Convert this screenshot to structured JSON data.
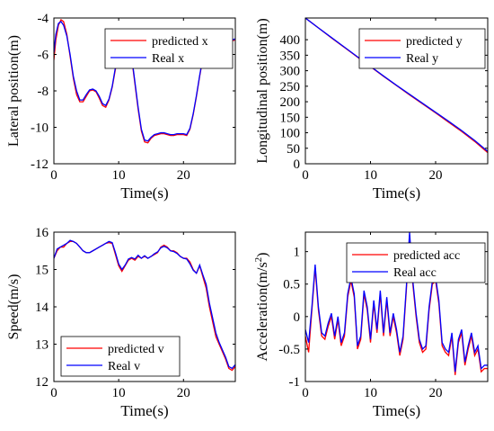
{
  "colors": {
    "predicted": "#ff0000",
    "real": "#0000ff"
  },
  "chart_data": [
    {
      "type": "line",
      "xlabel": "Time(s)",
      "ylabel": "Lateral position(m)",
      "xlim": [
        0,
        28
      ],
      "ylim": [
        -12,
        -4
      ],
      "xticks": [
        "0",
        "10",
        "20"
      ],
      "yticks": [
        "-12",
        "-10",
        "-8",
        "-6",
        "-4"
      ],
      "legend_position": "top-right",
      "series": [
        {
          "name": "predicted x",
          "color": "#ff0000",
          "x": [
            0,
            0.3,
            0.7,
            1.1,
            1.5,
            2,
            2.5,
            3,
            3.5,
            4,
            4.5,
            5,
            5.5,
            6,
            6.5,
            7,
            7.5,
            8,
            8.5,
            9,
            9.5,
            10,
            10.5,
            11,
            11.5,
            12,
            12.5,
            13,
            13.5,
            14,
            14.5,
            15,
            15.5,
            16,
            16.5,
            17,
            17.5,
            18,
            18.5,
            19,
            19.5,
            20,
            20.5,
            21,
            21.5,
            22,
            22.5,
            23,
            23.5,
            24,
            25,
            26,
            27,
            28
          ],
          "y": [
            -6.3,
            -5.2,
            -4.4,
            -4.1,
            -4.2,
            -4.9,
            -6.1,
            -7.3,
            -8.2,
            -8.6,
            -8.6,
            -8.3,
            -8.0,
            -7.95,
            -8.05,
            -8.4,
            -8.8,
            -8.9,
            -8.5,
            -7.8,
            -6.8,
            -5.9,
            -5.3,
            -5.1,
            -5.3,
            -6.2,
            -7.6,
            -9.0,
            -10.2,
            -10.8,
            -10.85,
            -10.6,
            -10.45,
            -10.4,
            -10.35,
            -10.35,
            -10.4,
            -10.45,
            -10.45,
            -10.4,
            -10.4,
            -10.4,
            -10.45,
            -10.1,
            -9.3,
            -8.3,
            -7.2,
            -6.2,
            -5.5,
            -5.2,
            -5.2,
            -5.3,
            -5.3,
            -5.2
          ]
        },
        {
          "name": "Real x",
          "color": "#0000ff",
          "x": [
            0,
            0.3,
            0.7,
            1.1,
            1.5,
            2,
            2.5,
            3,
            3.5,
            4,
            4.5,
            5,
            5.5,
            6,
            6.5,
            7,
            7.5,
            8,
            8.5,
            9,
            9.5,
            10,
            10.5,
            11,
            11.5,
            12,
            12.5,
            13,
            13.5,
            14,
            14.5,
            15,
            15.5,
            16,
            16.5,
            17,
            17.5,
            18,
            18.5,
            19,
            19.5,
            20,
            20.5,
            21,
            21.5,
            22,
            22.5,
            23,
            23.5,
            24,
            25,
            26,
            27,
            28
          ],
          "y": [
            -5.9,
            -4.9,
            -4.3,
            -4.2,
            -4.4,
            -5.0,
            -6.0,
            -7.2,
            -8.0,
            -8.5,
            -8.5,
            -8.2,
            -7.95,
            -7.9,
            -8.0,
            -8.3,
            -8.7,
            -8.8,
            -8.45,
            -7.75,
            -6.7,
            -5.85,
            -5.25,
            -5.05,
            -5.25,
            -6.1,
            -7.5,
            -8.9,
            -10.1,
            -10.7,
            -10.75,
            -10.55,
            -10.4,
            -10.35,
            -10.3,
            -10.3,
            -10.35,
            -10.4,
            -10.4,
            -10.35,
            -10.35,
            -10.35,
            -10.4,
            -10.05,
            -9.25,
            -8.25,
            -7.15,
            -6.15,
            -5.45,
            -5.15,
            -5.1,
            -5.25,
            -5.25,
            -5.15
          ]
        }
      ]
    },
    {
      "type": "line",
      "xlabel": "Time(s)",
      "ylabel": "Longitudinal position(m)",
      "xlim": [
        0,
        28
      ],
      "ylim": [
        0,
        470
      ],
      "xticks": [
        "0",
        "10",
        "20"
      ],
      "yticks": [
        "0",
        "50",
        "100",
        "150",
        "200",
        "250",
        "300",
        "350",
        "400"
      ],
      "legend_position": "top-right",
      "series": [
        {
          "name": "predicted y",
          "color": "#ff0000",
          "x": [
            0,
            2,
            4,
            6,
            8,
            10,
            12,
            14,
            16,
            18,
            20,
            22,
            24,
            26,
            28
          ],
          "y": [
            470,
            438,
            406,
            375,
            344,
            313,
            282,
            252,
            222,
            193,
            164,
            134,
            104,
            72,
            36
          ]
        },
        {
          "name": "Real y",
          "color": "#0000ff",
          "x": [
            0,
            2,
            4,
            6,
            8,
            10,
            12,
            14,
            16,
            18,
            20,
            22,
            24,
            26,
            28
          ],
          "y": [
            470,
            438,
            407,
            376,
            345,
            314,
            283,
            253,
            224,
            195,
            166,
            137,
            107,
            75,
            40
          ]
        }
      ]
    },
    {
      "type": "line",
      "xlabel": "Time(s)",
      "ylabel": "Speed(m/s)",
      "xlim": [
        0,
        28
      ],
      "ylim": [
        12,
        16
      ],
      "xticks": [
        "0",
        "10",
        "20"
      ],
      "yticks": [
        "12",
        "13",
        "14",
        "15",
        "16"
      ],
      "legend_position": "bottom-left",
      "series": [
        {
          "name": "predicted v",
          "color": "#ff0000",
          "x": [
            0,
            0.5,
            1,
            1.5,
            2,
            2.5,
            3,
            3.5,
            4,
            4.5,
            5,
            5.5,
            6,
            6.5,
            7,
            7.5,
            8,
            8.5,
            9,
            9.5,
            10,
            10.5,
            11,
            11.5,
            12,
            12.5,
            13,
            13.5,
            14,
            14.5,
            15,
            15.5,
            16,
            16.5,
            17,
            17.5,
            18,
            18.5,
            19,
            19.5,
            20,
            20.5,
            21,
            21.5,
            22,
            22.5,
            23,
            23.5,
            24,
            24.5,
            25,
            25.5,
            26,
            26.5,
            27,
            27.5,
            28
          ],
          "y": [
            15.3,
            15.5,
            15.6,
            15.6,
            15.7,
            15.75,
            15.75,
            15.7,
            15.6,
            15.5,
            15.45,
            15.45,
            15.5,
            15.55,
            15.6,
            15.65,
            15.7,
            15.72,
            15.7,
            15.4,
            15.1,
            14.95,
            15.1,
            15.25,
            15.3,
            15.25,
            15.35,
            15.3,
            15.35,
            15.3,
            15.35,
            15.4,
            15.45,
            15.6,
            15.65,
            15.6,
            15.5,
            15.5,
            15.45,
            15.35,
            15.3,
            15.3,
            15.2,
            15.0,
            14.9,
            15.1,
            14.8,
            14.5,
            14.0,
            13.6,
            13.2,
            13.0,
            12.8,
            12.6,
            12.35,
            12.3,
            12.4
          ]
        },
        {
          "name": "Real v",
          "color": "#0000ff",
          "x": [
            0,
            0.5,
            1,
            1.5,
            2,
            2.5,
            3,
            3.5,
            4,
            4.5,
            5,
            5.5,
            6,
            6.5,
            7,
            7.5,
            8,
            8.5,
            9,
            9.5,
            10,
            10.5,
            11,
            11.5,
            12,
            12.5,
            13,
            13.5,
            14,
            14.5,
            15,
            15.5,
            16,
            16.5,
            17,
            17.5,
            18,
            18.5,
            19,
            19.5,
            20,
            20.5,
            21,
            21.5,
            22,
            22.5,
            23,
            23.5,
            24,
            24.5,
            25,
            25.5,
            26,
            26.5,
            27,
            27.5,
            28
          ],
          "y": [
            15.3,
            15.55,
            15.6,
            15.65,
            15.7,
            15.78,
            15.75,
            15.7,
            15.6,
            15.5,
            15.45,
            15.45,
            15.5,
            15.55,
            15.6,
            15.65,
            15.7,
            15.75,
            15.72,
            15.45,
            15.15,
            15.0,
            15.12,
            15.28,
            15.32,
            15.28,
            15.38,
            15.3,
            15.37,
            15.3,
            15.35,
            15.42,
            15.47,
            15.58,
            15.62,
            15.58,
            15.5,
            15.48,
            15.43,
            15.35,
            15.3,
            15.28,
            15.15,
            14.98,
            14.9,
            15.12,
            14.85,
            14.6,
            14.1,
            13.7,
            13.3,
            13.05,
            12.85,
            12.65,
            12.4,
            12.35,
            12.45
          ]
        }
      ]
    },
    {
      "type": "line",
      "xlabel": "Time(s)",
      "ylabel": "Acceleration(m/s",
      "ylabel_sup": "2",
      "ylabel_end": ")",
      "xlim": [
        0,
        28
      ],
      "ylim": [
        -1,
        1.3
      ],
      "xticks": [
        "0",
        "10",
        "20"
      ],
      "yticks": [
        "-1",
        "-0.5",
        "0",
        "0.5",
        "1"
      ],
      "legend_position": "top-right",
      "series": [
        {
          "name": "predicted acc",
          "color": "#ff0000",
          "x": [
            0,
            0.5,
            1,
            1.5,
            2,
            2.5,
            3,
            3.5,
            4,
            4.5,
            5,
            5.5,
            6,
            6.5,
            7,
            7.5,
            8,
            8.5,
            9,
            9.5,
            10,
            10.5,
            11,
            11.5,
            12,
            12.5,
            13,
            13.5,
            14,
            14.5,
            15,
            15.5,
            16,
            16.5,
            17,
            17.5,
            18,
            18.5,
            19,
            19.5,
            20,
            20.5,
            21,
            21.5,
            22,
            22.5,
            23,
            23.5,
            24,
            24.5,
            25,
            25.5,
            26,
            26.5,
            27,
            27.5,
            28
          ],
          "y": [
            -0.3,
            -0.55,
            0.1,
            0.75,
            0.1,
            -0.3,
            -0.35,
            -0.15,
            0.0,
            -0.35,
            -0.05,
            -0.45,
            -0.3,
            0.3,
            0.55,
            0.3,
            -0.5,
            -0.35,
            0.35,
            0.1,
            -0.4,
            0.2,
            -0.25,
            0.35,
            -0.3,
            0.25,
            -0.3,
            0.0,
            -0.25,
            -0.6,
            -0.35,
            0.4,
            1.25,
            0.5,
            0.0,
            -0.4,
            -0.55,
            -0.5,
            0.1,
            0.5,
            0.55,
            0.2,
            -0.45,
            -0.55,
            -0.6,
            -0.3,
            -0.9,
            -0.4,
            -0.25,
            -0.75,
            -0.5,
            -0.3,
            -0.6,
            -0.5,
            -0.85,
            -0.8,
            -0.8
          ]
        },
        {
          "name": "Real acc",
          "color": "#0000ff",
          "x": [
            0,
            0.5,
            1,
            1.5,
            2,
            2.5,
            3,
            3.5,
            4,
            4.5,
            5,
            5.5,
            6,
            6.5,
            7,
            7.5,
            8,
            8.5,
            9,
            9.5,
            10,
            10.5,
            11,
            11.5,
            12,
            12.5,
            13,
            13.5,
            14,
            14.5,
            15,
            15.5,
            16,
            16.5,
            17,
            17.5,
            18,
            18.5,
            19,
            19.5,
            20,
            20.5,
            21,
            21.5,
            22,
            22.5,
            23,
            23.5,
            24,
            24.5,
            25,
            25.5,
            26,
            26.5,
            27,
            27.5,
            28
          ],
          "y": [
            -0.2,
            -0.4,
            0.15,
            0.8,
            0.15,
            -0.25,
            -0.3,
            -0.1,
            0.05,
            -0.3,
            0.0,
            -0.4,
            -0.25,
            0.35,
            0.6,
            0.35,
            -0.45,
            -0.3,
            0.4,
            0.15,
            -0.35,
            0.25,
            -0.2,
            0.4,
            -0.25,
            0.3,
            -0.25,
            0.05,
            -0.2,
            -0.55,
            -0.3,
            0.45,
            1.3,
            0.55,
            0.05,
            -0.35,
            -0.5,
            -0.45,
            0.15,
            0.55,
            0.6,
            0.25,
            -0.4,
            -0.5,
            -0.55,
            -0.25,
            -0.85,
            -0.35,
            -0.2,
            -0.7,
            -0.45,
            -0.25,
            -0.55,
            -0.45,
            -0.8,
            -0.75,
            -0.75
          ]
        }
      ]
    }
  ]
}
